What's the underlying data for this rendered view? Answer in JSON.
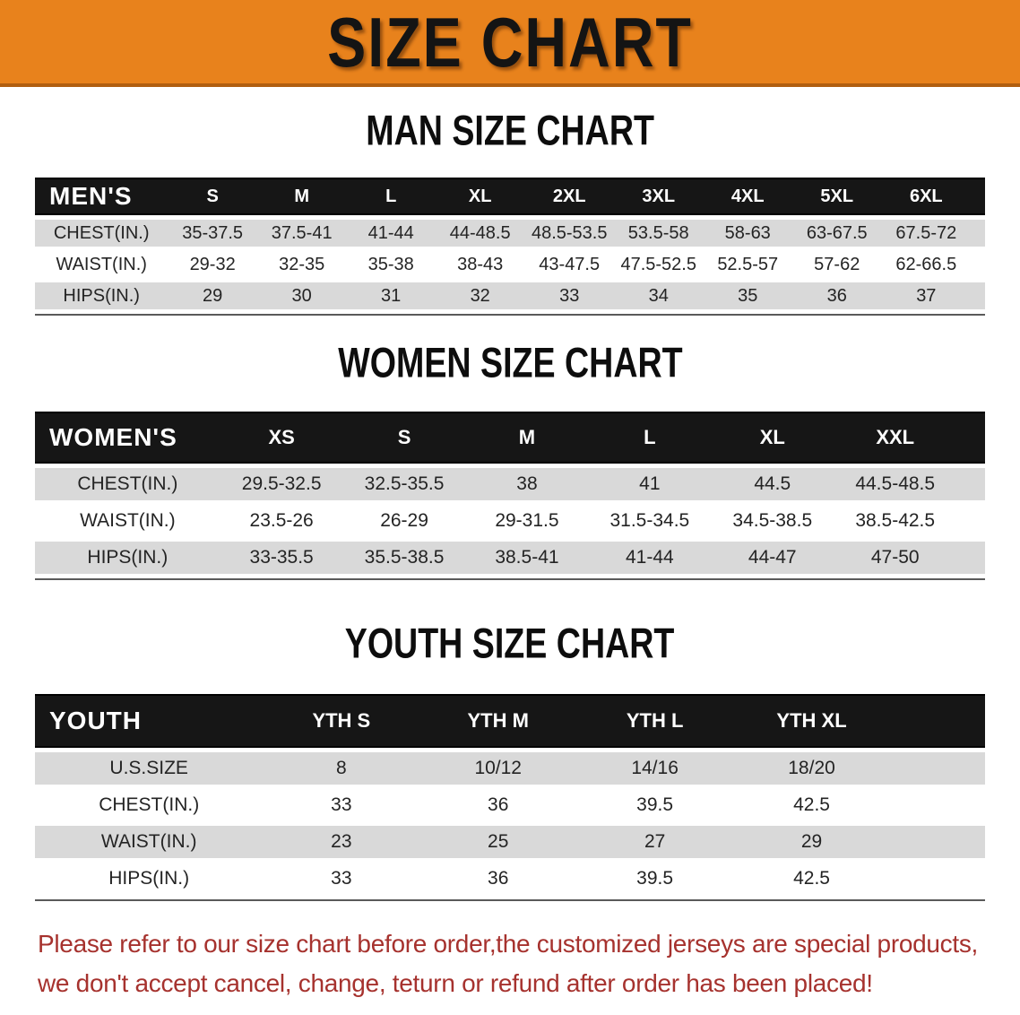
{
  "banner": {
    "title": "SIZE CHART"
  },
  "sections": [
    {
      "heading": "MAN SIZE CHART",
      "table": {
        "header_label": "MEN'S",
        "columns": [
          "S",
          "M",
          "L",
          "XL",
          "2XL",
          "3XL",
          "4XL",
          "5XL",
          "6XL"
        ],
        "rows": [
          {
            "label": "CHEST(IN.)",
            "values": [
              "35-37.5",
              "37.5-41",
              "41-44",
              "44-48.5",
              "48.5-53.5",
              "53.5-58",
              "58-63",
              "63-67.5",
              "67.5-72"
            ]
          },
          {
            "label": "WAIST(IN.)",
            "values": [
              "29-32",
              "32-35",
              "35-38",
              "38-43",
              "43-47.5",
              "47.5-52.5",
              "52.5-57",
              "57-62",
              "62-66.5"
            ]
          },
          {
            "label": "HIPS(IN.)",
            "values": [
              "29",
              "30",
              "31",
              "32",
              "33",
              "34",
              "35",
              "36",
              "37"
            ]
          }
        ]
      }
    },
    {
      "heading": "WOMEN SIZE CHART",
      "table": {
        "header_label": "WOMEN'S",
        "columns": [
          "XS",
          "S",
          "M",
          "L",
          "XL",
          "XXL"
        ],
        "rows": [
          {
            "label": "CHEST(IN.)",
            "values": [
              "29.5-32.5",
              "32.5-35.5",
              "38",
              "41",
              "44.5",
              "44.5-48.5"
            ]
          },
          {
            "label": "WAIST(IN.)",
            "values": [
              "23.5-26",
              "26-29",
              "29-31.5",
              "31.5-34.5",
              "34.5-38.5",
              "38.5-42.5"
            ]
          },
          {
            "label": "HIPS(IN.)",
            "values": [
              "33-35.5",
              "35.5-38.5",
              "38.5-41",
              "41-44",
              "44-47",
              "47-50"
            ]
          }
        ]
      }
    },
    {
      "heading": "YOUTH SIZE CHART",
      "table": {
        "header_label": "YOUTH",
        "columns": [
          "YTH S",
          "YTH M",
          "YTH L",
          "YTH XL"
        ],
        "rows": [
          {
            "label": "U.S.SIZE",
            "values": [
              "8",
              "10/12",
              "14/16",
              "18/20"
            ]
          },
          {
            "label": "CHEST(IN.)",
            "values": [
              "33",
              "36",
              "39.5",
              "42.5"
            ]
          },
          {
            "label": "WAIST(IN.)",
            "values": [
              "23",
              "25",
              "27",
              "29"
            ]
          },
          {
            "label": "HIPS(IN.)",
            "values": [
              "33",
              "36",
              "39.5",
              "42.5"
            ]
          }
        ]
      }
    }
  ],
  "disclaimer": {
    "line1": "Please refer to our size chart before order,the customized jerseys are special products,",
    "line2": "we don't accept cancel, change, teturn or refund after order has been placed!"
  },
  "colors": {
    "banner_bg": "#E8821C",
    "banner_edge": "#B05E10",
    "header_row_bg": "#161616",
    "stripe_row_bg": "#D9D9D9",
    "disclaimer_text": "#A6322E",
    "heading_text": "#0D0D0D"
  }
}
